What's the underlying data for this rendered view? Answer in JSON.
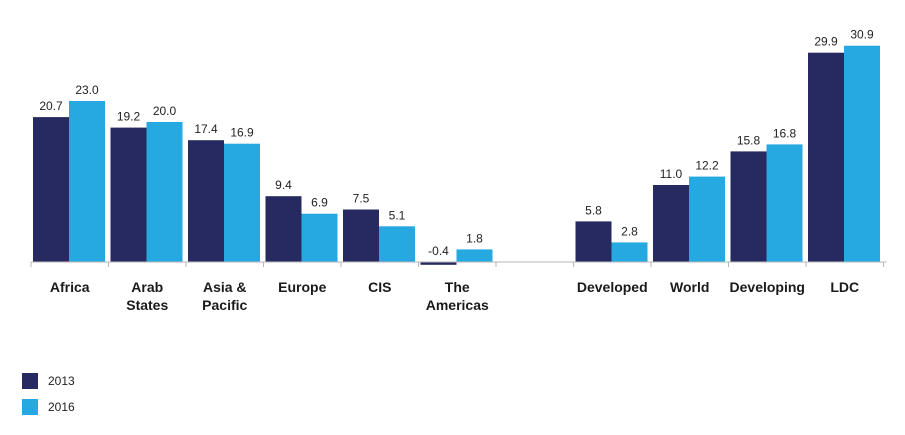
{
  "chart_data": {
    "type": "bar",
    "categories": [
      [
        "Africa"
      ],
      [
        "Arab",
        "States"
      ],
      [
        "Asia &",
        "Pacific"
      ],
      [
        "Europe"
      ],
      [
        "CIS"
      ],
      [
        "The",
        "Americas"
      ],
      [],
      [
        "Developed"
      ],
      [
        "World"
      ],
      [
        "Developing"
      ],
      [
        "LDC"
      ]
    ],
    "series": [
      {
        "name": "2013",
        "color": "#262a61",
        "values": [
          20.7,
          19.2,
          17.4,
          9.4,
          7.5,
          -0.4,
          null,
          5.8,
          11.0,
          15.8,
          29.9
        ]
      },
      {
        "name": "2016",
        "color": "#25a9e0",
        "values": [
          23.0,
          20.0,
          16.9,
          6.9,
          5.1,
          1.8,
          null,
          2.8,
          12.2,
          16.8,
          30.9
        ]
      }
    ],
    "ylim": [
      -0.4,
      30.9
    ],
    "grid": false,
    "legend": "bottom-left"
  }
}
